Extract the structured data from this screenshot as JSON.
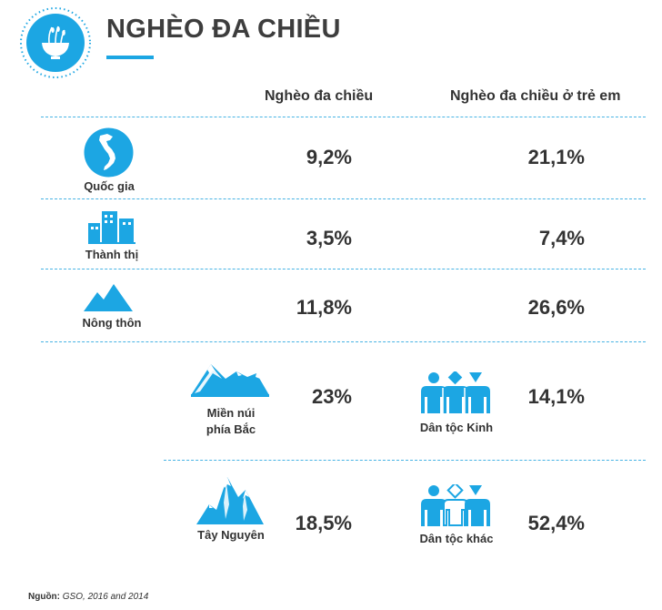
{
  "header": {
    "title": "NGHÈO ĐA CHIỀU",
    "logo_icon": "rice-bowl-icon"
  },
  "columns": [
    "Nghèo đa chiều",
    "Nghèo đa chiều ở trẻ em"
  ],
  "rows": [
    {
      "label": "Quốc gia",
      "icon": "vietnam-map-icon",
      "poverty": "9,2%",
      "child_poverty": "21,1%"
    },
    {
      "label": "Thành thị",
      "icon": "city-buildings-icon",
      "poverty": "3,5%",
      "child_poverty": "7,4%"
    },
    {
      "label": "Nông thôn",
      "icon": "mountains-icon",
      "poverty": "11,8%",
      "child_poverty": "26,6%"
    }
  ],
  "regions": [
    {
      "label_line1": "Miền núi",
      "label_line2": "phía Bắc",
      "icon": "snow-mountain-icon",
      "value": "23%"
    },
    {
      "label_line1": "Tây Nguyên",
      "icon": "highland-mountain-icon",
      "value": "18,5%"
    }
  ],
  "ethnic": [
    {
      "label": "Dân tộc Kinh",
      "icon": "people-group-icon",
      "value": "14,1%"
    },
    {
      "label": "Dân tộc khác",
      "icon": "people-group-diverse-icon",
      "value": "52,4%"
    }
  ],
  "source": {
    "label": "Nguồn:",
    "text": "GSO, 2016 and 2014"
  },
  "colors": {
    "accent": "#1ca6e3",
    "text": "#333333"
  }
}
